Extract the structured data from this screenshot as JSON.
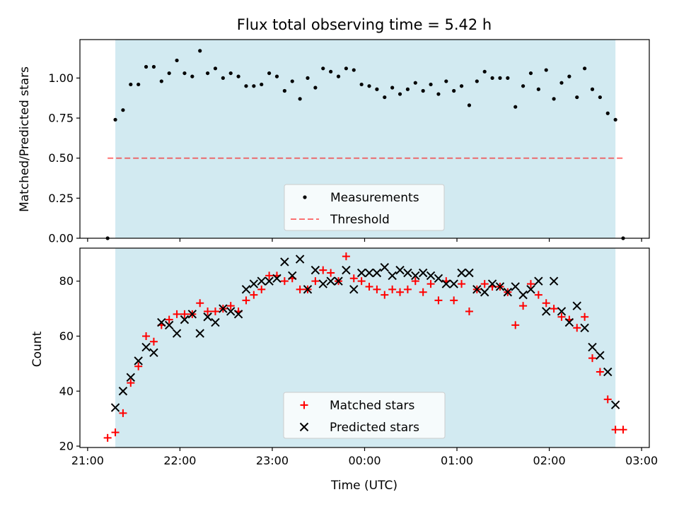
{
  "chart_data": [
    {
      "type": "scatter",
      "title": "Flux total observing time = 5.42 h",
      "xlabel": "",
      "ylabel": "Matched/Predicted stars",
      "ylim": [
        0,
        1.24
      ],
      "yticks": [
        "0.00",
        "0.25",
        "0.50",
        "0.75",
        "1.00"
      ],
      "ytick_values": [
        0,
        0.25,
        0.5,
        0.75,
        1.0
      ],
      "x_unit": "minutes from 21:00 UTC",
      "xlim": [
        -5,
        365
      ],
      "observing_window": [
        18,
        343
      ],
      "observing_window_color": "#add8e6",
      "threshold": {
        "name": "Threshold",
        "value": 0.5,
        "x_range": [
          13,
          348
        ],
        "color": "#ff0000"
      },
      "legend": {
        "placement": "lower-center",
        "entries": [
          "Measurements",
          "Threshold"
        ]
      },
      "series": [
        {
          "name": "Measurements",
          "color": "#000000",
          "marker": "dot",
          "points": [
            [
              13,
              0.0
            ],
            [
              18,
              0.74
            ],
            [
              23,
              0.8
            ],
            [
              28,
              0.96
            ],
            [
              33,
              0.96
            ],
            [
              38,
              1.07
            ],
            [
              43,
              1.07
            ],
            [
              48,
              0.98
            ],
            [
              53,
              1.03
            ],
            [
              58,
              1.11
            ],
            [
              63,
              1.03
            ],
            [
              68,
              1.01
            ],
            [
              73,
              1.17
            ],
            [
              78,
              1.03
            ],
            [
              83,
              1.06
            ],
            [
              88,
              1.0
            ],
            [
              93,
              1.03
            ],
            [
              98,
              1.01
            ],
            [
              103,
              0.95
            ],
            [
              108,
              0.95
            ],
            [
              113,
              0.96
            ],
            [
              118,
              1.03
            ],
            [
              123,
              1.01
            ],
            [
              128,
              0.92
            ],
            [
              133,
              0.98
            ],
            [
              138,
              0.87
            ],
            [
              143,
              1.0
            ],
            [
              148,
              0.94
            ],
            [
              153,
              1.06
            ],
            [
              158,
              1.04
            ],
            [
              163,
              1.01
            ],
            [
              168,
              1.06
            ],
            [
              173,
              1.05
            ],
            [
              178,
              0.96
            ],
            [
              183,
              0.95
            ],
            [
              188,
              0.93
            ],
            [
              193,
              0.88
            ],
            [
              198,
              0.94
            ],
            [
              203,
              0.9
            ],
            [
              208,
              0.93
            ],
            [
              213,
              0.97
            ],
            [
              218,
              0.92
            ],
            [
              223,
              0.96
            ],
            [
              228,
              0.9
            ],
            [
              233,
              0.98
            ],
            [
              238,
              0.92
            ],
            [
              243,
              0.95
            ],
            [
              248,
              0.83
            ],
            [
              253,
              0.98
            ],
            [
              258,
              1.04
            ],
            [
              263,
              1.0
            ],
            [
              268,
              1.0
            ],
            [
              273,
              1.0
            ],
            [
              278,
              0.82
            ],
            [
              283,
              0.95
            ],
            [
              288,
              1.03
            ],
            [
              293,
              0.93
            ],
            [
              298,
              1.05
            ],
            [
              303,
              0.87
            ],
            [
              308,
              0.97
            ],
            [
              313,
              1.01
            ],
            [
              318,
              0.88
            ],
            [
              323,
              1.06
            ],
            [
              328,
              0.93
            ],
            [
              333,
              0.88
            ],
            [
              338,
              0.78
            ],
            [
              343,
              0.74
            ],
            [
              348,
              0.0
            ]
          ]
        }
      ]
    },
    {
      "type": "scatter",
      "title": "",
      "xlabel": "Time (UTC)",
      "ylabel": "Count",
      "ylim": [
        19.5,
        92
      ],
      "yticks": [
        "20",
        "40",
        "60",
        "80"
      ],
      "ytick_values": [
        20,
        40,
        60,
        80
      ],
      "x_unit": "minutes from 21:00 UTC",
      "xlim": [
        -5,
        365
      ],
      "xticks": [
        "21:00",
        "22:00",
        "23:00",
        "00:00",
        "01:00",
        "02:00",
        "03:00"
      ],
      "xtick_values": [
        0,
        60,
        120,
        180,
        240,
        300,
        360
      ],
      "observing_window": [
        18,
        343
      ],
      "observing_window_color": "#add8e6",
      "legend": {
        "placement": "lower-center",
        "entries": [
          "Matched stars",
          "Predicted stars"
        ]
      },
      "series": [
        {
          "name": "Matched stars",
          "color": "#ff0000",
          "marker": "plus",
          "points": [
            [
              13,
              23
            ],
            [
              18,
              25
            ],
            [
              23,
              32
            ],
            [
              28,
              43
            ],
            [
              33,
              49
            ],
            [
              38,
              60
            ],
            [
              43,
              58
            ],
            [
              48,
              64
            ],
            [
              53,
              66
            ],
            [
              58,
              68
            ],
            [
              63,
              68
            ],
            [
              68,
              68
            ],
            [
              73,
              72
            ],
            [
              78,
              69
            ],
            [
              83,
              69
            ],
            [
              88,
              70
            ],
            [
              93,
              71
            ],
            [
              98,
              69
            ],
            [
              103,
              73
            ],
            [
              108,
              75
            ],
            [
              113,
              77
            ],
            [
              118,
              82
            ],
            [
              123,
              82
            ],
            [
              128,
              80
            ],
            [
              133,
              81
            ],
            [
              138,
              77
            ],
            [
              143,
              77
            ],
            [
              148,
              80
            ],
            [
              153,
              84
            ],
            [
              158,
              83
            ],
            [
              163,
              80
            ],
            [
              168,
              89
            ],
            [
              173,
              81
            ],
            [
              178,
              80
            ],
            [
              183,
              78
            ],
            [
              188,
              77
            ],
            [
              193,
              75
            ],
            [
              198,
              77
            ],
            [
              203,
              76
            ],
            [
              208,
              77
            ],
            [
              213,
              80
            ],
            [
              218,
              76
            ],
            [
              223,
              79
            ],
            [
              228,
              73
            ],
            [
              233,
              80
            ],
            [
              238,
              73
            ],
            [
              243,
              79
            ],
            [
              248,
              69
            ],
            [
              253,
              77
            ],
            [
              258,
              79
            ],
            [
              263,
              78
            ],
            [
              268,
              78
            ],
            [
              273,
              76
            ],
            [
              278,
              64
            ],
            [
              283,
              71
            ],
            [
              288,
              79
            ],
            [
              293,
              75
            ],
            [
              298,
              72
            ],
            [
              303,
              70
            ],
            [
              308,
              67
            ],
            [
              313,
              66
            ],
            [
              318,
              63
            ],
            [
              323,
              67
            ],
            [
              328,
              52
            ],
            [
              333,
              47
            ],
            [
              338,
              37
            ],
            [
              343,
              26
            ],
            [
              348,
              26
            ]
          ]
        },
        {
          "name": "Predicted stars",
          "color": "#000000",
          "marker": "cross",
          "points": [
            [
              18,
              34
            ],
            [
              23,
              40
            ],
            [
              28,
              45
            ],
            [
              33,
              51
            ],
            [
              38,
              56
            ],
            [
              43,
              54
            ],
            [
              48,
              65
            ],
            [
              53,
              64
            ],
            [
              58,
              61
            ],
            [
              63,
              66
            ],
            [
              68,
              68
            ],
            [
              73,
              61
            ],
            [
              78,
              67
            ],
            [
              83,
              65
            ],
            [
              88,
              70
            ],
            [
              93,
              69
            ],
            [
              98,
              68
            ],
            [
              103,
              77
            ],
            [
              108,
              79
            ],
            [
              113,
              80
            ],
            [
              118,
              80
            ],
            [
              123,
              81
            ],
            [
              128,
              87
            ],
            [
              133,
              82
            ],
            [
              138,
              88
            ],
            [
              143,
              77
            ],
            [
              148,
              84
            ],
            [
              153,
              79
            ],
            [
              158,
              80
            ],
            [
              163,
              80
            ],
            [
              168,
              84
            ],
            [
              173,
              77
            ],
            [
              178,
              83
            ],
            [
              183,
              83
            ],
            [
              188,
              83
            ],
            [
              193,
              85
            ],
            [
              198,
              82
            ],
            [
              203,
              84
            ],
            [
              208,
              83
            ],
            [
              213,
              82
            ],
            [
              218,
              83
            ],
            [
              223,
              82
            ],
            [
              228,
              81
            ],
            [
              233,
              79
            ],
            [
              238,
              79
            ],
            [
              243,
              83
            ],
            [
              248,
              83
            ],
            [
              253,
              77
            ],
            [
              258,
              76
            ],
            [
              263,
              79
            ],
            [
              268,
              78
            ],
            [
              273,
              76
            ],
            [
              278,
              78
            ],
            [
              283,
              75
            ],
            [
              288,
              77
            ],
            [
              293,
              80
            ],
            [
              298,
              69
            ],
            [
              303,
              80
            ],
            [
              308,
              69
            ],
            [
              313,
              65
            ],
            [
              318,
              71
            ],
            [
              323,
              63
            ],
            [
              328,
              56
            ],
            [
              333,
              53
            ],
            [
              338,
              47
            ],
            [
              343,
              35
            ]
          ]
        }
      ]
    }
  ]
}
